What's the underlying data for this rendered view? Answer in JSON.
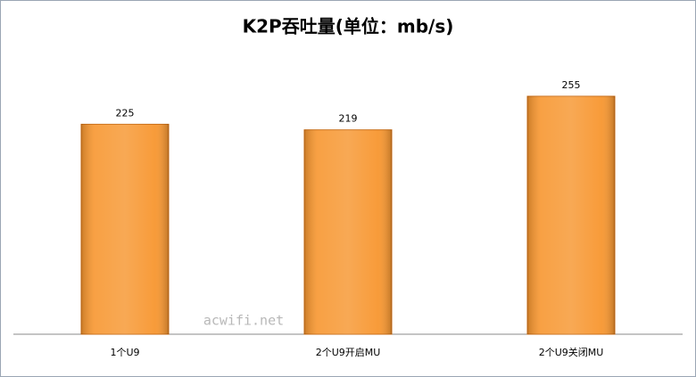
{
  "chart_data": {
    "type": "bar",
    "title": "K2P吞吐量(单位：mb/s)",
    "categories": [
      "1个U9",
      "2个U9开启MU",
      "2个U9关闭MU"
    ],
    "values": [
      225,
      219,
      255
    ],
    "color": "#f7962f",
    "watermark": "acwifi.net"
  }
}
